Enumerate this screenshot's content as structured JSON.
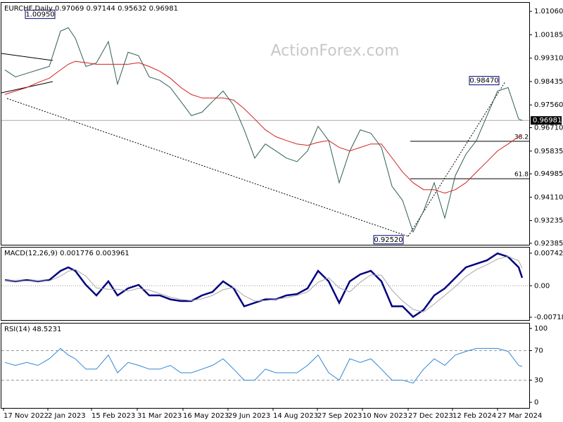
{
  "chart_data": [
    {
      "type": "line",
      "title": "EURCHF,Daily  0.97069 0.97144 0.95632 0.96981",
      "watermark": "ActionForex.com",
      "xlim": [
        0,
        375
      ],
      "ylim": [
        0.9233,
        1.0138
      ],
      "yticks": [
        {
          "value": 1.0106,
          "label": "1.01060"
        },
        1.00185,
        {
          "value": 0.9931,
          "label": "0.99310"
        },
        0.98435,
        {
          "value": 0.9756,
          "label": "0.97560"
        },
        {
          "value": 0.9671,
          "label": "0.96710"
        },
        0.95835,
        0.94985,
        {
          "value": 0.9411,
          "label": "0.94110"
        },
        0.93235,
        0.92385
      ],
      "price_labels": [
        {
          "value": 1.0095,
          "label": "1.00950"
        },
        {
          "value": 0.9847,
          "label": "0.98470"
        },
        {
          "value": 0.9252,
          "label": "0.92520"
        }
      ],
      "current_price": 0.96981,
      "fibonacci": [
        {
          "ratio": 38.2,
          "value": 0.962
        },
        {
          "ratio": 61.8,
          "value": 0.948
        }
      ],
      "series": [
        {
          "color": "#2f5f55",
          "x": [
            2.5,
            10,
            18,
            26,
            34,
            42,
            47.5,
            52.5,
            60,
            67.5,
            76,
            82.5,
            90,
            97.5,
            105,
            112.5,
            120,
            127.5,
            135,
            142.5,
            150,
            157.5,
            165,
            172.5,
            180,
            187.5,
            195,
            202.5,
            210,
            217.5,
            225,
            232.5,
            240,
            247.5,
            255,
            262.5,
            270,
            277.5,
            285,
            292.5,
            300,
            307.5,
            315,
            322.5,
            330,
            337.5,
            345,
            352.5,
            360,
            367.5,
            370
          ],
          "values": [
            0.9887,
            0.9861,
            0.9874,
            0.9887,
            0.99,
            1.0032,
            1.0045,
            1.0006,
            0.99,
            0.9913,
            0.9993,
            0.9834,
            0.9953,
            0.994,
            0.9861,
            0.9848,
            0.9821,
            0.9769,
            0.9716,
            0.9729,
            0.9769,
            0.9808,
            0.9755,
            0.9663,
            0.9557,
            0.961,
            0.9584,
            0.9557,
            0.9544,
            0.9584,
            0.9676,
            0.9623,
            0.9465,
            0.9584,
            0.9663,
            0.965,
            0.9597,
            0.9452,
            0.9399,
            0.9281,
            0.936,
            0.9465,
            0.9333,
            0.9492,
            0.9571,
            0.9623,
            0.9716,
            0.9808,
            0.9821,
            0.9703,
            0.9698
          ]
        },
        {
          "color": "#d42020",
          "x": [
            2.5,
            10,
            18,
            26,
            34,
            42,
            47.5,
            52.5,
            60,
            67.5,
            76,
            82.5,
            90,
            97.5,
            105,
            112.5,
            120,
            127.5,
            135,
            142.5,
            150,
            157.5,
            165,
            172.5,
            180,
            187.5,
            195,
            202.5,
            210,
            217.5,
            225,
            232.5,
            240,
            247.5,
            255,
            262.5,
            270,
            277.5,
            285,
            292.5,
            300,
            307.5,
            315,
            322.5,
            330,
            337.5,
            345,
            352.5,
            360,
            367.5,
            370
          ],
          "values": [
            0.9795,
            0.9808,
            0.9821,
            0.984,
            0.9856,
            0.9887,
            0.9908,
            0.9919,
            0.9914,
            0.9908,
            0.9908,
            0.9908,
            0.9908,
            0.9914,
            0.99,
            0.9882,
            0.9856,
            0.9821,
            0.9795,
            0.9782,
            0.9782,
            0.9782,
            0.9774,
            0.9742,
            0.9703,
            0.9663,
            0.9637,
            0.9623,
            0.961,
            0.9605,
            0.9616,
            0.9623,
            0.9597,
            0.9584,
            0.9597,
            0.961,
            0.961,
            0.9558,
            0.9505,
            0.9465,
            0.9439,
            0.9439,
            0.9426,
            0.9439,
            0.9465,
            0.9505,
            0.9544,
            0.9584,
            0.961,
            0.9637,
            0.9642
          ]
        }
      ]
    },
    {
      "type": "line",
      "title": "MACD(12,26,9) 0.001776 0.003961",
      "xlim": [
        0,
        375
      ],
      "ylim": [
        -0.007828,
        0.008712
      ],
      "yticks": [
        0.007427,
        {
          "value": 0,
          "label": "0.00"
        },
        -0.007186
      ],
      "levels": [
        0
      ],
      "series": [
        {
          "color": "#000080",
          "x": [
            2.5,
            10,
            18,
            26,
            34,
            42,
            47.5,
            52.5,
            60,
            67.5,
            76,
            82.5,
            90,
            97.5,
            105,
            112.5,
            120,
            127.5,
            135,
            142.5,
            150,
            157.5,
            165,
            172.5,
            180,
            187.5,
            195,
            202.5,
            210,
            217.5,
            225,
            232.5,
            240,
            247.5,
            255,
            262.5,
            270,
            277.5,
            285,
            292.5,
            300,
            307.5,
            315,
            322.5,
            330,
            337.5,
            345,
            352.5,
            360,
            367.5,
            370
          ],
          "values": [
            0.0013,
            0.001,
            0.0013,
            0.001,
            0.0013,
            0.0034,
            0.0042,
            0.0034,
            0.0002,
            -0.0022,
            0.001,
            -0.0022,
            -0.0006,
            0.0002,
            -0.0022,
            -0.0022,
            -0.0031,
            -0.0035,
            -0.0035,
            -0.0022,
            -0.0014,
            0.001,
            -0.0006,
            -0.0047,
            -0.0039,
            -0.0031,
            -0.0031,
            -0.0022,
            -0.0019,
            -0.0006,
            0.0034,
            0.001,
            -0.0039,
            0.001,
            0.0026,
            0.0034,
            0.001,
            -0.0047,
            -0.0047,
            -0.0071,
            -0.0055,
            -0.0022,
            -0.0006,
            0.0018,
            0.0042,
            0.005,
            0.0058,
            0.0074,
            0.0066,
            0.0042,
            0.0018
          ]
        },
        {
          "color": "#a8a8a8",
          "x": [
            2.5,
            10,
            18,
            26,
            34,
            42,
            47.5,
            52.5,
            60,
            67.5,
            76,
            82.5,
            90,
            97.5,
            105,
            112.5,
            120,
            127.5,
            135,
            142.5,
            150,
            157.5,
            165,
            172.5,
            180,
            187.5,
            195,
            202.5,
            210,
            217.5,
            225,
            232.5,
            240,
            247.5,
            255,
            262.5,
            270,
            277.5,
            285,
            292.5,
            300,
            307.5,
            315,
            322.5,
            330,
            337.5,
            345,
            352.5,
            360,
            367.5,
            370
          ],
          "values": [
            0.0012,
            0.0011,
            0.0011,
            0.0011,
            0.0011,
            0.0022,
            0.0033,
            0.0037,
            0.0022,
            -0.0005,
            -0.0008,
            -0.0008,
            -0.0012,
            -0.0006,
            -0.001,
            -0.0018,
            -0.0026,
            -0.0031,
            -0.0034,
            -0.003,
            -0.0022,
            -0.0009,
            -0.0004,
            -0.0023,
            -0.0035,
            -0.0034,
            -0.0031,
            -0.0027,
            -0.0022,
            -0.0014,
            0.0008,
            0.0018,
            -0.0005,
            -0.0014,
            0.0008,
            0.0025,
            0.0024,
            -0.001,
            -0.0035,
            -0.0054,
            -0.006,
            -0.0042,
            -0.0022,
            -0.0002,
            0.0021,
            0.0037,
            0.0048,
            0.0061,
            0.0067,
            0.0057,
            0.004
          ]
        }
      ]
    },
    {
      "type": "line",
      "title": "RSI(14) 48.5231",
      "xlim": [
        0,
        375
      ],
      "ylim": [
        -7.6,
        106.7
      ],
      "yticks": [
        100,
        70,
        30,
        0
      ],
      "levels": [
        70,
        30
      ],
      "xticks": [
        {
          "value": 1.5,
          "label": "17 Nov 2022"
        },
        {
          "value": 33,
          "label": "2 Jan 2023"
        },
        {
          "value": 64,
          "label": "15 Feb 2023"
        },
        {
          "value": 96.5,
          "label": "31 Mar 2023"
        },
        {
          "value": 129,
          "label": "16 May 2023"
        },
        {
          "value": 161,
          "label": "29 Jun 2023"
        },
        {
          "value": 193,
          "label": "14 Aug 2023"
        },
        {
          "value": 224.5,
          "label": "27 Sep 2023"
        },
        {
          "value": 256.5,
          "label": "10 Nov 2023"
        },
        {
          "value": 289,
          "label": "27 Dec 2023"
        },
        {
          "value": 320.5,
          "label": "12 Feb 2024"
        },
        {
          "value": 352.5,
          "label": "27 Mar 2024"
        }
      ],
      "series": [
        {
          "color": "#2f86d6",
          "x": [
            2.5,
            10,
            18,
            26,
            34,
            42,
            47.5,
            52.5,
            60,
            67.5,
            76,
            82.5,
            90,
            97.5,
            105,
            112.5,
            120,
            127.5,
            135,
            142.5,
            150,
            157.5,
            165,
            172.5,
            180,
            187.5,
            195,
            202.5,
            210,
            217.5,
            225,
            232.5,
            240,
            247.5,
            255,
            262.5,
            270,
            277.5,
            285,
            292.5,
            300,
            307.5,
            315,
            322.5,
            330,
            337.5,
            345,
            352.5,
            360,
            367.5,
            370
          ],
          "values": [
            54,
            50,
            54,
            50,
            59,
            73,
            64,
            59,
            45,
            45,
            64,
            40,
            54,
            50,
            45,
            45,
            50,
            40,
            40,
            45,
            50,
            59,
            45,
            30,
            30,
            45,
            40,
            40,
            40,
            50,
            64,
            40,
            30,
            59,
            54,
            59,
            45,
            30,
            30,
            26,
            45,
            59,
            50,
            64,
            69,
            73,
            73,
            73,
            69,
            50,
            48.5231
          ]
        }
      ]
    }
  ]
}
